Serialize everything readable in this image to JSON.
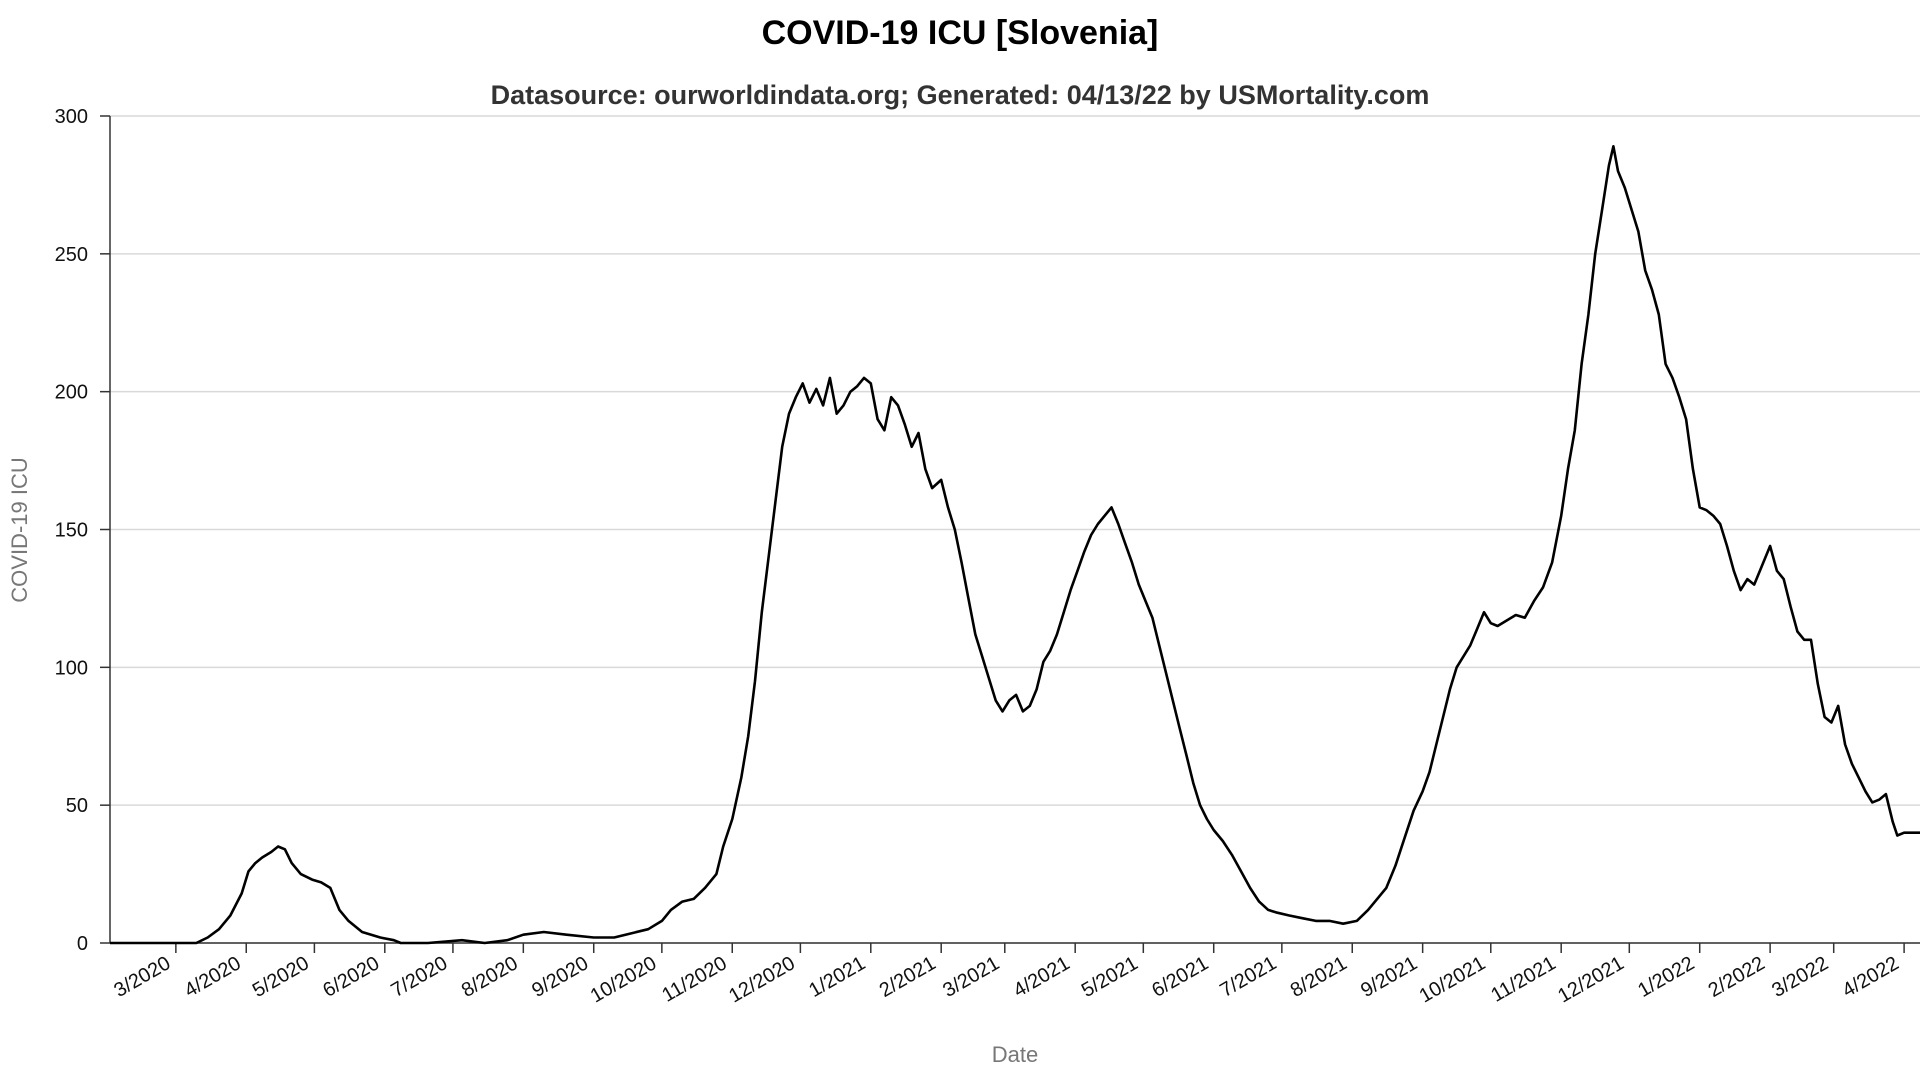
{
  "chart_data": {
    "type": "line",
    "title": "COVID-19 ICU [Slovenia]",
    "subtitle": "Datasource: ourworldindata.org; Generated: 04/13/22 by USMortality.com",
    "xlabel": "Date",
    "ylabel": "COVID-19 ICU",
    "ylim": [
      0,
      300
    ],
    "yticks": [
      0,
      50,
      100,
      150,
      200,
      250,
      300
    ],
    "xlim": [
      "2020-02-01",
      "2022-04-08"
    ],
    "xticks": [
      {
        "date": "2020-03-01",
        "label": "3/2020"
      },
      {
        "date": "2020-04-01",
        "label": "4/2020"
      },
      {
        "date": "2020-05-01",
        "label": "5/2020"
      },
      {
        "date": "2020-06-01",
        "label": "6/2020"
      },
      {
        "date": "2020-07-01",
        "label": "7/2020"
      },
      {
        "date": "2020-08-01",
        "label": "8/2020"
      },
      {
        "date": "2020-09-01",
        "label": "9/2020"
      },
      {
        "date": "2020-10-01",
        "label": "10/2020"
      },
      {
        "date": "2020-11-01",
        "label": "11/2020"
      },
      {
        "date": "2020-12-01",
        "label": "12/2020"
      },
      {
        "date": "2021-01-01",
        "label": "1/2021"
      },
      {
        "date": "2021-02-01",
        "label": "2/2021"
      },
      {
        "date": "2021-03-01",
        "label": "3/2021"
      },
      {
        "date": "2021-04-01",
        "label": "4/2021"
      },
      {
        "date": "2021-05-01",
        "label": "5/2021"
      },
      {
        "date": "2021-06-01",
        "label": "6/2021"
      },
      {
        "date": "2021-07-01",
        "label": "7/2021"
      },
      {
        "date": "2021-08-01",
        "label": "8/2021"
      },
      {
        "date": "2021-09-01",
        "label": "9/2021"
      },
      {
        "date": "2021-10-01",
        "label": "10/2021"
      },
      {
        "date": "2021-11-01",
        "label": "11/2021"
      },
      {
        "date": "2021-12-01",
        "label": "12/2021"
      },
      {
        "date": "2022-01-01",
        "label": "1/2022"
      },
      {
        "date": "2022-02-01",
        "label": "2/2022"
      },
      {
        "date": "2022-03-01",
        "label": "3/2022"
      },
      {
        "date": "2022-04-01",
        "label": "4/2022"
      }
    ],
    "grid": true,
    "color": "#000000",
    "series": [
      {
        "points": [
          [
            "2020-02-01",
            0
          ],
          [
            "2020-03-10",
            0
          ],
          [
            "2020-03-15",
            2
          ],
          [
            "2020-03-20",
            5
          ],
          [
            "2020-03-25",
            10
          ],
          [
            "2020-03-30",
            18
          ],
          [
            "2020-04-02",
            26
          ],
          [
            "2020-04-05",
            29
          ],
          [
            "2020-04-08",
            31
          ],
          [
            "2020-04-12",
            33
          ],
          [
            "2020-04-15",
            35
          ],
          [
            "2020-04-18",
            34
          ],
          [
            "2020-04-21",
            29
          ],
          [
            "2020-04-25",
            25
          ],
          [
            "2020-04-30",
            23
          ],
          [
            "2020-05-04",
            22
          ],
          [
            "2020-05-08",
            20
          ],
          [
            "2020-05-12",
            12
          ],
          [
            "2020-05-16",
            8
          ],
          [
            "2020-05-22",
            4
          ],
          [
            "2020-05-30",
            2
          ],
          [
            "2020-06-05",
            1
          ],
          [
            "2020-06-08",
            0
          ],
          [
            "2020-06-20",
            0
          ],
          [
            "2020-07-05",
            1
          ],
          [
            "2020-07-15",
            0
          ],
          [
            "2020-07-25",
            1
          ],
          [
            "2020-08-01",
            3
          ],
          [
            "2020-08-10",
            4
          ],
          [
            "2020-08-20",
            3
          ],
          [
            "2020-09-01",
            2
          ],
          [
            "2020-09-10",
            2
          ],
          [
            "2020-09-15",
            3
          ],
          [
            "2020-09-25",
            5
          ],
          [
            "2020-10-01",
            8
          ],
          [
            "2020-10-05",
            12
          ],
          [
            "2020-10-10",
            15
          ],
          [
            "2020-10-15",
            16
          ],
          [
            "2020-10-20",
            20
          ],
          [
            "2020-10-25",
            25
          ],
          [
            "2020-10-28",
            35
          ],
          [
            "2020-11-01",
            45
          ],
          [
            "2020-11-05",
            60
          ],
          [
            "2020-11-08",
            75
          ],
          [
            "2020-11-11",
            95
          ],
          [
            "2020-11-14",
            120
          ],
          [
            "2020-11-17",
            140
          ],
          [
            "2020-11-20",
            160
          ],
          [
            "2020-11-23",
            180
          ],
          [
            "2020-11-26",
            192
          ],
          [
            "2020-11-29",
            198
          ],
          [
            "2020-12-02",
            203
          ],
          [
            "2020-12-05",
            196
          ],
          [
            "2020-12-08",
            201
          ],
          [
            "2020-12-11",
            195
          ],
          [
            "2020-12-14",
            205
          ],
          [
            "2020-12-17",
            192
          ],
          [
            "2020-12-20",
            195
          ],
          [
            "2020-12-23",
            200
          ],
          [
            "2020-12-26",
            202
          ],
          [
            "2020-12-29",
            205
          ],
          [
            "2021-01-01",
            203
          ],
          [
            "2021-01-04",
            190
          ],
          [
            "2021-01-07",
            186
          ],
          [
            "2021-01-10",
            198
          ],
          [
            "2021-01-13",
            195
          ],
          [
            "2021-01-16",
            188
          ],
          [
            "2021-01-19",
            180
          ],
          [
            "2021-01-22",
            185
          ],
          [
            "2021-01-25",
            172
          ],
          [
            "2021-01-28",
            165
          ],
          [
            "2021-02-01",
            168
          ],
          [
            "2021-02-04",
            158
          ],
          [
            "2021-02-07",
            150
          ],
          [
            "2021-02-10",
            138
          ],
          [
            "2021-02-13",
            125
          ],
          [
            "2021-02-16",
            112
          ],
          [
            "2021-02-19",
            104
          ],
          [
            "2021-02-22",
            96
          ],
          [
            "2021-02-25",
            88
          ],
          [
            "2021-02-28",
            84
          ],
          [
            "2021-03-03",
            88
          ],
          [
            "2021-03-06",
            90
          ],
          [
            "2021-03-09",
            84
          ],
          [
            "2021-03-12",
            86
          ],
          [
            "2021-03-15",
            92
          ],
          [
            "2021-03-18",
            102
          ],
          [
            "2021-03-21",
            106
          ],
          [
            "2021-03-24",
            112
          ],
          [
            "2021-03-27",
            120
          ],
          [
            "2021-03-30",
            128
          ],
          [
            "2021-04-02",
            135
          ],
          [
            "2021-04-05",
            142
          ],
          [
            "2021-04-08",
            148
          ],
          [
            "2021-04-11",
            152
          ],
          [
            "2021-04-14",
            155
          ],
          [
            "2021-04-17",
            158
          ],
          [
            "2021-04-20",
            152
          ],
          [
            "2021-04-23",
            145
          ],
          [
            "2021-04-26",
            138
          ],
          [
            "2021-04-29",
            130
          ],
          [
            "2021-05-02",
            124
          ],
          [
            "2021-05-05",
            118
          ],
          [
            "2021-05-08",
            108
          ],
          [
            "2021-05-11",
            98
          ],
          [
            "2021-05-14",
            88
          ],
          [
            "2021-05-17",
            78
          ],
          [
            "2021-05-20",
            68
          ],
          [
            "2021-05-23",
            58
          ],
          [
            "2021-05-26",
            50
          ],
          [
            "2021-05-29",
            45
          ],
          [
            "2021-06-01",
            41
          ],
          [
            "2021-06-05",
            37
          ],
          [
            "2021-06-09",
            32
          ],
          [
            "2021-06-13",
            26
          ],
          [
            "2021-06-17",
            20
          ],
          [
            "2021-06-21",
            15
          ],
          [
            "2021-06-25",
            12
          ],
          [
            "2021-06-29",
            11
          ],
          [
            "2021-07-04",
            10
          ],
          [
            "2021-07-10",
            9
          ],
          [
            "2021-07-16",
            8
          ],
          [
            "2021-07-22",
            8
          ],
          [
            "2021-07-28",
            7
          ],
          [
            "2021-08-03",
            8
          ],
          [
            "2021-08-08",
            12
          ],
          [
            "2021-08-12",
            16
          ],
          [
            "2021-08-16",
            20
          ],
          [
            "2021-08-20",
            28
          ],
          [
            "2021-08-24",
            38
          ],
          [
            "2021-08-28",
            48
          ],
          [
            "2021-09-01",
            55
          ],
          [
            "2021-09-04",
            62
          ],
          [
            "2021-09-07",
            72
          ],
          [
            "2021-09-10",
            82
          ],
          [
            "2021-09-13",
            92
          ],
          [
            "2021-09-16",
            100
          ],
          [
            "2021-09-19",
            104
          ],
          [
            "2021-09-22",
            108
          ],
          [
            "2021-09-25",
            114
          ],
          [
            "2021-09-28",
            120
          ],
          [
            "2021-10-01",
            116
          ],
          [
            "2021-10-04",
            115
          ],
          [
            "2021-10-08",
            117
          ],
          [
            "2021-10-12",
            119
          ],
          [
            "2021-10-16",
            118
          ],
          [
            "2021-10-20",
            124
          ],
          [
            "2021-10-24",
            129
          ],
          [
            "2021-10-28",
            138
          ],
          [
            "2021-11-01",
            155
          ],
          [
            "2021-11-04",
            172
          ],
          [
            "2021-11-07",
            186
          ],
          [
            "2021-11-10",
            210
          ],
          [
            "2021-11-13",
            228
          ],
          [
            "2021-11-16",
            250
          ],
          [
            "2021-11-19",
            266
          ],
          [
            "2021-11-22",
            282
          ],
          [
            "2021-11-24",
            289
          ],
          [
            "2021-11-26",
            280
          ],
          [
            "2021-11-29",
            274
          ],
          [
            "2021-12-02",
            266
          ],
          [
            "2021-12-05",
            258
          ],
          [
            "2021-12-08",
            244
          ],
          [
            "2021-12-11",
            237
          ],
          [
            "2021-12-14",
            228
          ],
          [
            "2021-12-17",
            210
          ],
          [
            "2021-12-20",
            205
          ],
          [
            "2021-12-23",
            198
          ],
          [
            "2021-12-26",
            190
          ],
          [
            "2021-12-29",
            172
          ],
          [
            "2022-01-01",
            158
          ],
          [
            "2022-01-04",
            157
          ],
          [
            "2022-01-07",
            155
          ],
          [
            "2022-01-10",
            152
          ],
          [
            "2022-01-13",
            144
          ],
          [
            "2022-01-16",
            135
          ],
          [
            "2022-01-19",
            128
          ],
          [
            "2022-01-22",
            132
          ],
          [
            "2022-01-25",
            130
          ],
          [
            "2022-01-28",
            136
          ],
          [
            "2022-02-01",
            144
          ],
          [
            "2022-02-04",
            135
          ],
          [
            "2022-02-07",
            132
          ],
          [
            "2022-02-10",
            122
          ],
          [
            "2022-02-13",
            113
          ],
          [
            "2022-02-16",
            110
          ],
          [
            "2022-02-19",
            110
          ],
          [
            "2022-02-22",
            94
          ],
          [
            "2022-02-25",
            82
          ],
          [
            "2022-02-28",
            80
          ],
          [
            "2022-03-03",
            86
          ],
          [
            "2022-03-06",
            72
          ],
          [
            "2022-03-09",
            65
          ],
          [
            "2022-03-12",
            60
          ],
          [
            "2022-03-15",
            55
          ],
          [
            "2022-03-18",
            51
          ],
          [
            "2022-03-21",
            52
          ],
          [
            "2022-03-24",
            54
          ],
          [
            "2022-03-27",
            44
          ],
          [
            "2022-03-29",
            39
          ],
          [
            "2022-04-01",
            40
          ],
          [
            "2022-04-08",
            40
          ]
        ]
      }
    ]
  }
}
